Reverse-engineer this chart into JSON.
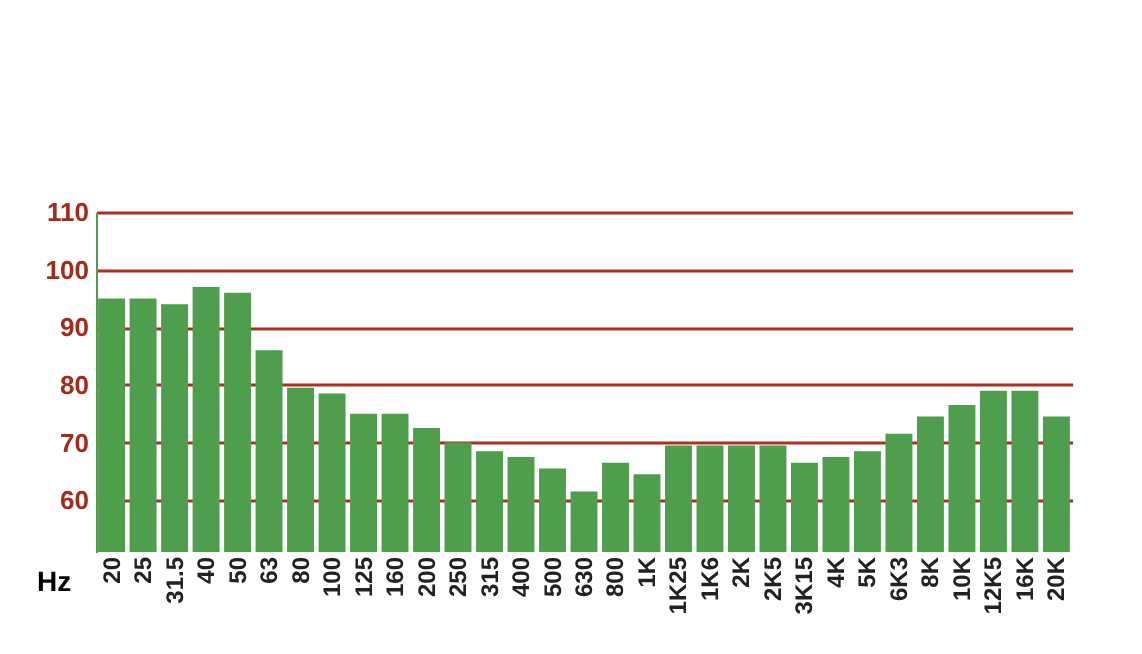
{
  "chart_data": {
    "type": "bar",
    "xlabel": "Hz",
    "categories": [
      "20",
      "25",
      "31.5",
      "40",
      "50",
      "63",
      "80",
      "100",
      "125",
      "160",
      "200",
      "250",
      "315",
      "400",
      "500",
      "630",
      "800",
      "1K",
      "1K25",
      "1K6",
      "2K",
      "2K5",
      "3K15",
      "4K",
      "5K",
      "6K3",
      "8K",
      "10K",
      "12K5",
      "16K",
      "20K"
    ],
    "values": [
      95,
      95,
      94,
      97,
      96,
      86,
      79.5,
      78.5,
      75,
      75,
      72.5,
      70,
      68.5,
      67.5,
      65.5,
      61.5,
      66.5,
      64.5,
      69.5,
      69.5,
      69.5,
      69.5,
      66.5,
      67.5,
      68.5,
      71.5,
      74.5,
      76.5,
      79,
      79,
      74.5
    ],
    "color": "#4e9e4e",
    "ylim": [
      51,
      110
    ],
    "yticks": [
      60,
      70,
      80,
      90,
      100,
      110
    ],
    "grid": "y"
  }
}
